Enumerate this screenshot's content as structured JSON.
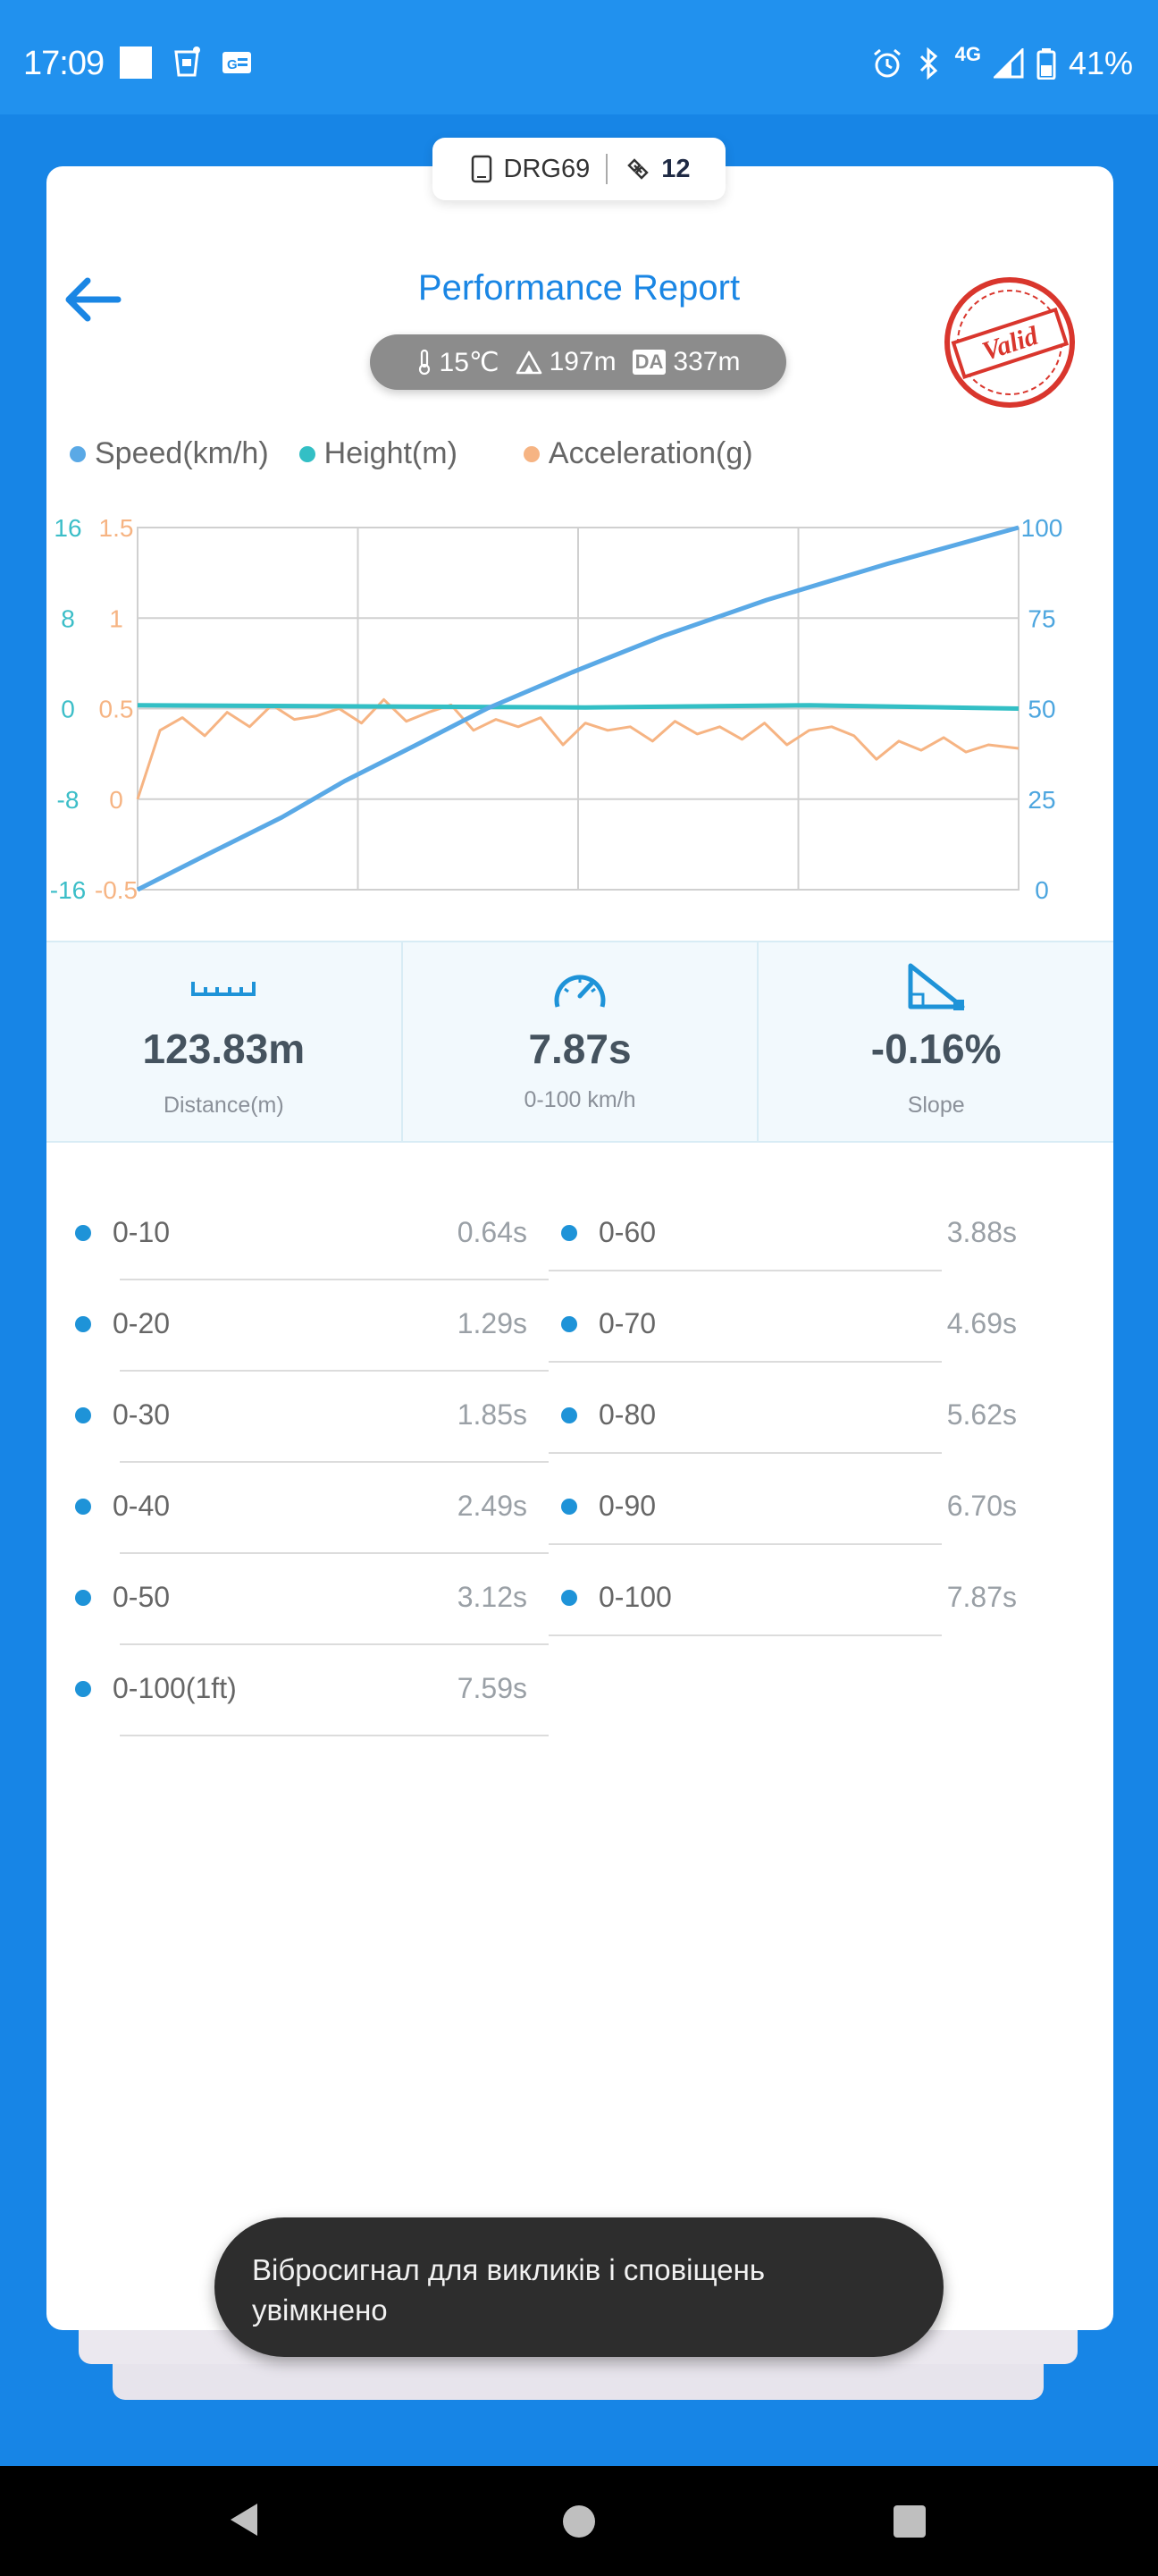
{
  "status_bar": {
    "time": "17:09",
    "network": "4G",
    "battery": "41%"
  },
  "device": {
    "name": "DRG69",
    "satellites": "12"
  },
  "header": {
    "title": "Performance Report"
  },
  "environment": {
    "temperature": "15℃",
    "altitude": "197m",
    "density_altitude_label": "DA",
    "density_altitude": "337m"
  },
  "stamp": {
    "text": "Valid"
  },
  "legend": [
    {
      "label": "Speed(km/h)",
      "color": "#5aa9e6"
    },
    {
      "label": "Height(m)",
      "color": "#33bfc5"
    },
    {
      "label": "Acceleration(g)",
      "color": "#f6b483"
    }
  ],
  "chart_data": {
    "type": "line",
    "x": [
      0,
      1,
      2,
      3,
      4,
      5,
      6,
      7,
      7.87
    ],
    "series": [
      {
        "name": "Speed(km/h)",
        "axis": "right",
        "color": "#5aa9e6",
        "x": [
          0,
          0.64,
          1.29,
          1.85,
          2.49,
          3.12,
          3.88,
          4.69,
          5.62,
          6.7,
          7.87
        ],
        "values": [
          0,
          10,
          20,
          30,
          40,
          50,
          60,
          70,
          80,
          90,
          100
        ]
      },
      {
        "name": "Height(m)",
        "axis": "left-outer",
        "color": "#33bfc5",
        "x": [
          0,
          2,
          4,
          6,
          7.87
        ],
        "values": [
          0.3,
          0.2,
          0.1,
          0.3,
          0
        ]
      },
      {
        "name": "Acceleration(g)",
        "axis": "left-inner",
        "color": "#f6b483",
        "x": [
          0,
          0.2,
          0.4,
          0.6,
          0.8,
          1.0,
          1.2,
          1.4,
          1.6,
          1.8,
          2.0,
          2.2,
          2.4,
          2.6,
          2.8,
          3.0,
          3.2,
          3.4,
          3.6,
          3.8,
          4.0,
          4.2,
          4.4,
          4.6,
          4.8,
          5.0,
          5.2,
          5.4,
          5.6,
          5.8,
          6.0,
          6.2,
          6.4,
          6.6,
          6.8,
          7.0,
          7.2,
          7.4,
          7.6,
          7.87
        ],
        "values": [
          0,
          0.38,
          0.45,
          0.35,
          0.48,
          0.4,
          0.52,
          0.44,
          0.46,
          0.5,
          0.42,
          0.55,
          0.43,
          0.48,
          0.52,
          0.38,
          0.44,
          0.4,
          0.45,
          0.3,
          0.42,
          0.38,
          0.4,
          0.32,
          0.43,
          0.36,
          0.4,
          0.33,
          0.42,
          0.3,
          0.38,
          0.4,
          0.35,
          0.22,
          0.32,
          0.27,
          0.34,
          0.26,
          0.3,
          0.28
        ]
      }
    ],
    "axes": {
      "left_outer": {
        "ticks": [
          "16",
          "8",
          "0",
          "-8",
          "-16"
        ],
        "ylim": [
          -16,
          16
        ],
        "color": "#3cbec8"
      },
      "left_inner": {
        "ticks": [
          "1.5",
          "1",
          "0.5",
          "0",
          "-0.5"
        ],
        "ylim": [
          -0.5,
          1.5
        ],
        "color": "#f6b483"
      },
      "right": {
        "ticks": [
          "100",
          "75",
          "50",
          "25",
          "0"
        ],
        "ylim": [
          0,
          100
        ],
        "color": "#4da6df"
      }
    },
    "grid": true
  },
  "stats": [
    {
      "value": "123.83m",
      "label": "Distance(m)",
      "icon": "ruler-icon"
    },
    {
      "value": "7.87s",
      "label": "0-100 km/h",
      "icon": "speedometer-icon"
    },
    {
      "value": "-0.16%",
      "label": "Slope",
      "icon": "slope-icon"
    }
  ],
  "splits_left": [
    {
      "name": "0-10",
      "time": "0.64s"
    },
    {
      "name": "0-20",
      "time": "1.29s"
    },
    {
      "name": "0-30",
      "time": "1.85s"
    },
    {
      "name": "0-40",
      "time": "2.49s"
    },
    {
      "name": "0-50",
      "time": "3.12s"
    },
    {
      "name": "0-100(1ft)",
      "time": "7.59s"
    }
  ],
  "splits_right": [
    {
      "name": "0-60",
      "time": "3.88s"
    },
    {
      "name": "0-70",
      "time": "4.69s"
    },
    {
      "name": "0-80",
      "time": "5.62s"
    },
    {
      "name": "0-90",
      "time": "6.70s"
    },
    {
      "name": "0-100",
      "time": "7.87s"
    }
  ],
  "toast": {
    "message": "Вібросигнал для викликів і сповіщень увімкнено"
  }
}
